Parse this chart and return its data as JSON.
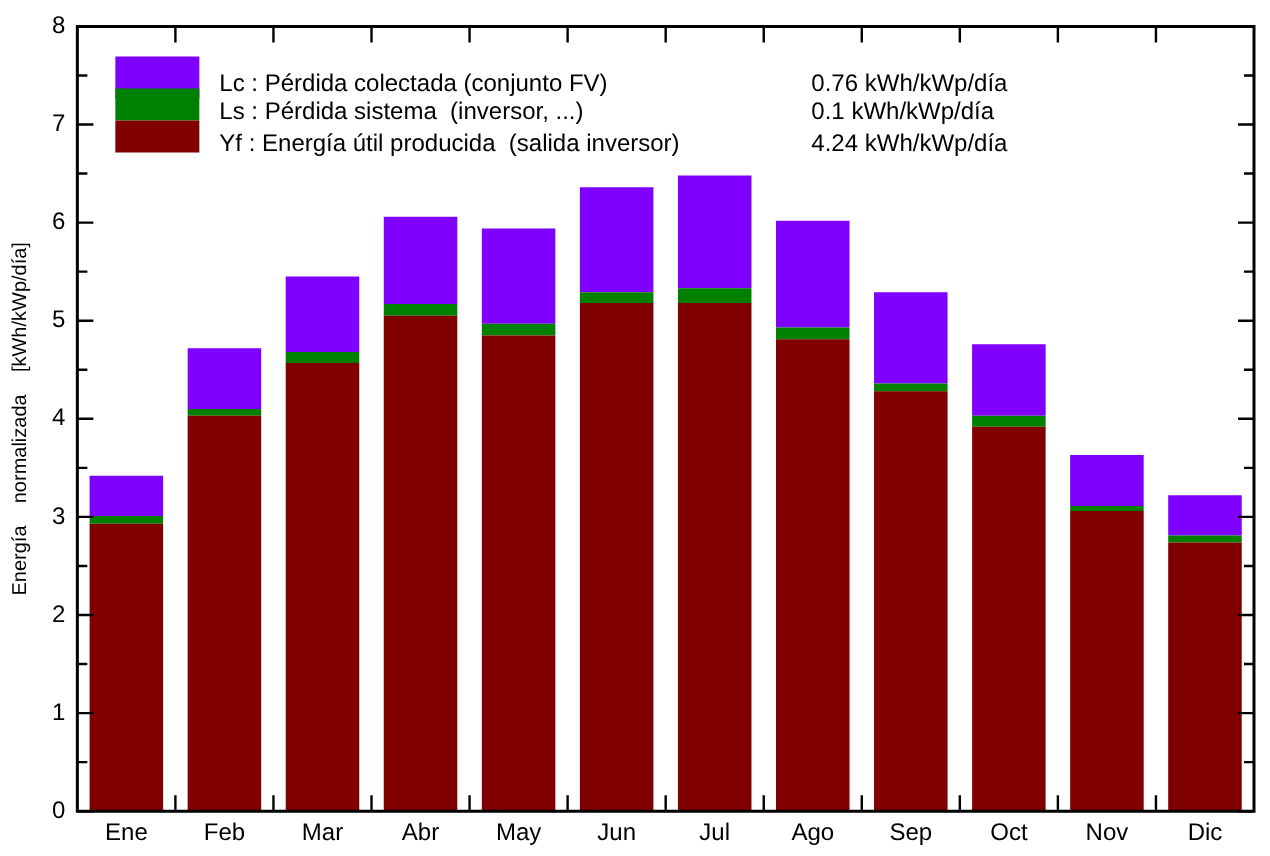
{
  "chart_data": {
    "type": "bar",
    "stacked": true,
    "ylabel": "Energía    normalizada    [kWh/kWp/día]",
    "categories": [
      "Ene",
      "Feb",
      "Mar",
      "Abr",
      "May",
      "Jun",
      "Jul",
      "Ago",
      "Sep",
      "Oct",
      "Nov",
      "Dic"
    ],
    "series": [
      {
        "name": "Yf : Energía útil producida  (salida inversor)",
        "color": "#800000",
        "values": [
          2.93,
          4.03,
          4.57,
          5.05,
          4.85,
          5.18,
          5.18,
          4.81,
          4.28,
          3.92,
          3.06,
          2.74
        ]
      },
      {
        "name": "Ls : Pérdida sistema  (inversor, ...)",
        "color": "#008000",
        "values": [
          0.08,
          0.07,
          0.11,
          0.12,
          0.12,
          0.11,
          0.15,
          0.12,
          0.08,
          0.11,
          0.05,
          0.07
        ]
      },
      {
        "name": "Lc : Pérdida colectada (conjunto FV)",
        "color": "#8000ff",
        "values": [
          0.41,
          0.62,
          0.77,
          0.89,
          0.97,
          1.07,
          1.15,
          1.09,
          0.93,
          0.73,
          0.52,
          0.41
        ]
      }
    ],
    "annotations": [
      "4.24 kWh/kWp/día",
      "0.1 kWh/kWp/día",
      "0.76 kWh/kWp/día"
    ],
    "ylim": [
      0,
      8
    ],
    "yticks": [
      0,
      {
        "value": 0.5,
        "label": null
      },
      1,
      {
        "value": 1.5,
        "label": null
      },
      2,
      {
        "value": 2.5,
        "label": null
      },
      3,
      {
        "value": 3.5,
        "label": null
      },
      4,
      {
        "value": 4.5,
        "label": null
      },
      5,
      {
        "value": 5.5,
        "label": null
      },
      6,
      {
        "value": 6.5,
        "label": null
      },
      7,
      {
        "value": 7.5,
        "label": null
      },
      8
    ],
    "legend": "top left",
    "grid": false
  }
}
